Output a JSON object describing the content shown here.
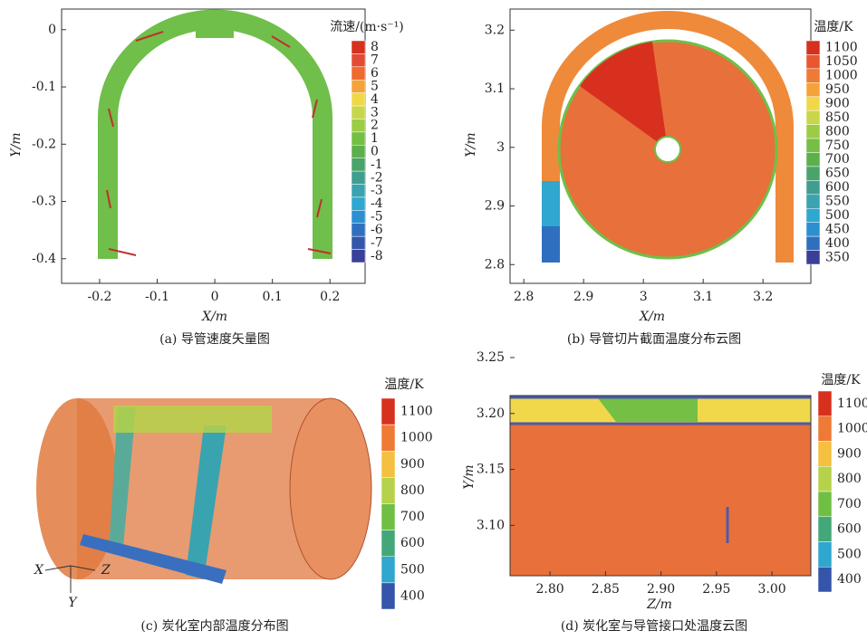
{
  "chart_data": [
    {
      "type": "vector",
      "caption": "(a) 导管速度矢量图",
      "xlabel": "X/m",
      "ylabel": "Y/m",
      "xlim": [
        -0.266,
        0.261
      ],
      "ylim": [
        -0.443,
        0.036
      ],
      "xticks": [
        -0.2,
        -0.1,
        0,
        0.1,
        0.2
      ],
      "yticks": [
        0,
        -0.1,
        -0.2,
        -0.3,
        -0.4
      ],
      "colorbar": {
        "title": "流速/(m·s⁻¹)",
        "ticks": [
          8,
          7,
          6,
          5,
          4,
          3,
          2,
          1,
          0,
          -1,
          -2,
          -3,
          -4,
          -5,
          -6,
          -7,
          -8
        ],
        "colors": [
          "#d7301f",
          "#e34a33",
          "#ef6a2e",
          "#f5a23a",
          "#f0d84a",
          "#c8d64a",
          "#9ccc45",
          "#74bf44",
          "#5cb04a",
          "#4aa36a",
          "#3f9e8f",
          "#3aa3b0",
          "#2fa7cf",
          "#2b8fd0",
          "#2f6fbf",
          "#3355aa",
          "#3a3f99"
        ]
      }
    },
    {
      "type": "contour",
      "caption": "(b) 导管切片截面温度分布云图",
      "xlabel": "X/m",
      "ylabel": "Y/m",
      "xlim": [
        2.777,
        3.28
      ],
      "ylim": [
        2.768,
        3.236
      ],
      "xticks": [
        2.8,
        2.9,
        3.0,
        3.1,
        3.2
      ],
      "yticks": [
        3.2,
        3.1,
        3.0,
        2.9,
        2.8
      ],
      "colorbar": {
        "title": "温度/K",
        "ticks": [
          1100,
          1050,
          1000,
          950,
          900,
          850,
          800,
          750,
          700,
          650,
          600,
          550,
          500,
          450,
          400,
          350
        ],
        "colors": [
          "#d7301f",
          "#e8572e",
          "#ef7a36",
          "#f5a23a",
          "#f0d84a",
          "#c8d64a",
          "#9ccc45",
          "#74bf44",
          "#5cb04a",
          "#4aa36a",
          "#3f9e8f",
          "#3aa3b0",
          "#2fa7cf",
          "#2b8fd0",
          "#2f6fbf",
          "#3a3f99"
        ]
      }
    },
    {
      "type": "render",
      "caption": "(c) 炭化室内部温度分布图",
      "axes": [
        "X",
        "Y",
        "Z"
      ],
      "colorbar": {
        "title": "温度/K",
        "ticks": [
          1100,
          1000,
          900,
          800,
          700,
          600,
          500,
          400
        ],
        "colors": [
          "#d7301f",
          "#ef7a36",
          "#f5c040",
          "#b5d24a",
          "#6fbf44",
          "#44a77a",
          "#2fa7cf",
          "#3455aa"
        ]
      }
    },
    {
      "type": "contour",
      "caption": "(d) 炭化室与导管接口处温度云图",
      "xlabel": "Z/m",
      "ylabel": "Y/m",
      "xlim": [
        2.764,
        3.035
      ],
      "ylim": [
        3.055,
        3.216
      ],
      "xticks": [
        {
          "value": 2.8,
          "label": "2.80"
        },
        2.85,
        {
          "value": 2.9,
          "label": "2.90"
        },
        2.95,
        {
          "value": 3.0,
          "label": "3.00"
        }
      ],
      "yticks": [
        3.25,
        {
          "value": 3.2,
          "label": "3.20"
        },
        3.15,
        {
          "value": 3.1,
          "label": "3.10"
        }
      ],
      "colorbar": {
        "title": "温度/K",
        "ticks": [
          1100,
          1000,
          900,
          800,
          700,
          600,
          500,
          400
        ],
        "colors": [
          "#d7301f",
          "#ef7a36",
          "#f5c040",
          "#b5d24a",
          "#6fbf44",
          "#44a77a",
          "#2fa7cf",
          "#3455aa"
        ]
      }
    }
  ]
}
